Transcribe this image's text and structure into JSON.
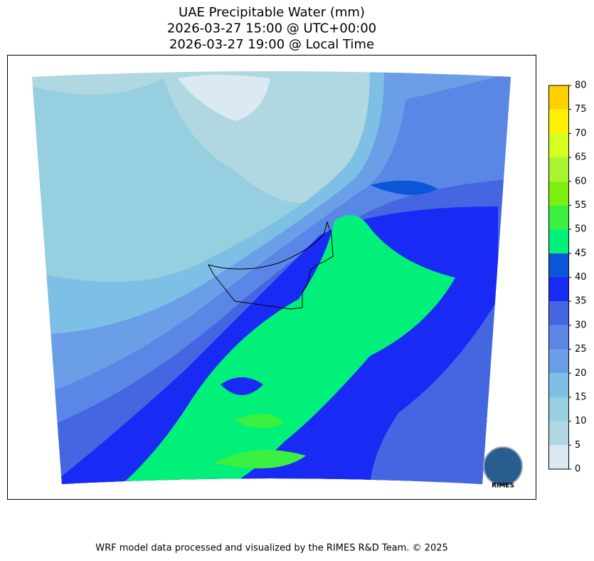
{
  "title": [
    "UAE Precipitable Water (mm)",
    "2026-03-27 15:00 @ UTC+00:00",
    "2026-03-27 19:00 @ Local Time"
  ],
  "colorbar": {
    "ticks": [
      0,
      5,
      10,
      15,
      20,
      25,
      30,
      35,
      40,
      45,
      50,
      55,
      60,
      65,
      70,
      75,
      80
    ],
    "colors": [
      "#dbeaf2",
      "#b0d8e3",
      "#95cfe0",
      "#7ebfe6",
      "#6a9fe8",
      "#5a86e6",
      "#4466e0",
      "#1a2af5",
      "#0b55d8",
      "#00f07a",
      "#3af040",
      "#7df010",
      "#a8f530",
      "#d6ff20",
      "#fff000",
      "#ffd000"
    ]
  },
  "logo": "RIMES",
  "footer": "WRF model data processed and visualized by the RIMES R&D Team. © 2025"
}
